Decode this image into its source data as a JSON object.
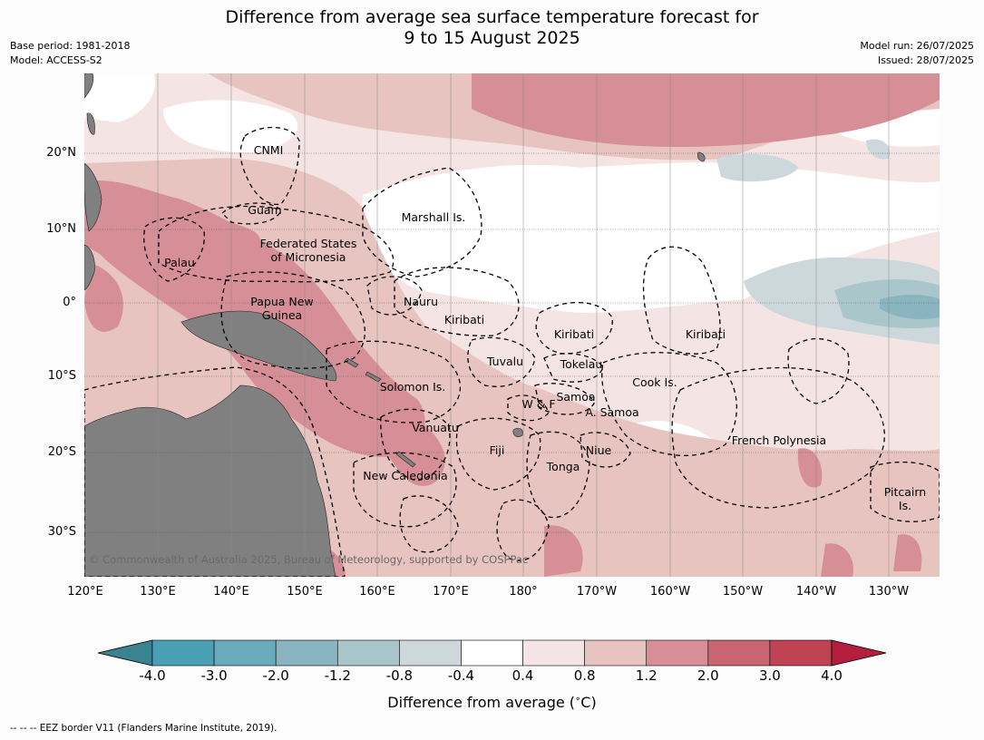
{
  "title_line1": "Difference from average sea surface temperature forecast for",
  "title_line2": "9 to 15 August 2025",
  "left_meta": [
    "Base period: 1981-2018",
    "Model: ACCESS-S2"
  ],
  "right_meta": [
    "Model run: 26/07/2025",
    "Issued: 28/07/2025"
  ],
  "copyright": "© Commonwealth of Australia 2025, Bureau of Meteorology, supported by COSPPac",
  "lat_labels": [
    "20°N",
    "10°N",
    "0°",
    "10°S",
    "20°S",
    "30°S"
  ],
  "lon_labels": [
    "120°E",
    "130°E",
    "140°E",
    "150°E",
    "160°E",
    "170°E",
    "180°",
    "170°W",
    "160°W",
    "150°W",
    "140°W",
    "130°W"
  ],
  "regions": [
    "CNMI",
    "Guam",
    "Marshall Is.",
    "Federated States",
    "of Micronesia",
    "Palau",
    "Papua New",
    "Guinea",
    "Nauru",
    "Kiribati",
    "Kiribati",
    "Kiribati",
    "Tuvalu",
    "Tokelau",
    "Cook Is.",
    "Solomon Is.",
    "Samoa",
    "W & F",
    "A. Samoa",
    "Vanuatu",
    "Fiji",
    "Niue",
    "Tonga",
    "French Polynesia",
    "New Caledonia",
    "Pitcairn",
    "Is."
  ],
  "colorbar": {
    "ticks": [
      "-4.0",
      "-3.0",
      "-2.0",
      "-1.2",
      "-0.8",
      "-0.4",
      "0.4",
      "0.8",
      "1.2",
      "2.0",
      "3.0",
      "4.0"
    ],
    "colors": [
      "#3b8391",
      "#4aa0b3",
      "#6aabbb",
      "#89b4c0",
      "#a9c6cb",
      "#cdd8dc",
      "#ffffff",
      "#f4e5e4",
      "#e8c4c1",
      "#d68f96",
      "#c8656f",
      "#be4353",
      "#b31e3c"
    ],
    "label": "Difference from average (°C)",
    "label_prefix": "Difference from average (",
    "label_unit": "°C",
    "label_suffix": ")"
  },
  "footnote": "--  --  -- EEZ border V11 (Flanders Marine Institute, 2019)."
}
